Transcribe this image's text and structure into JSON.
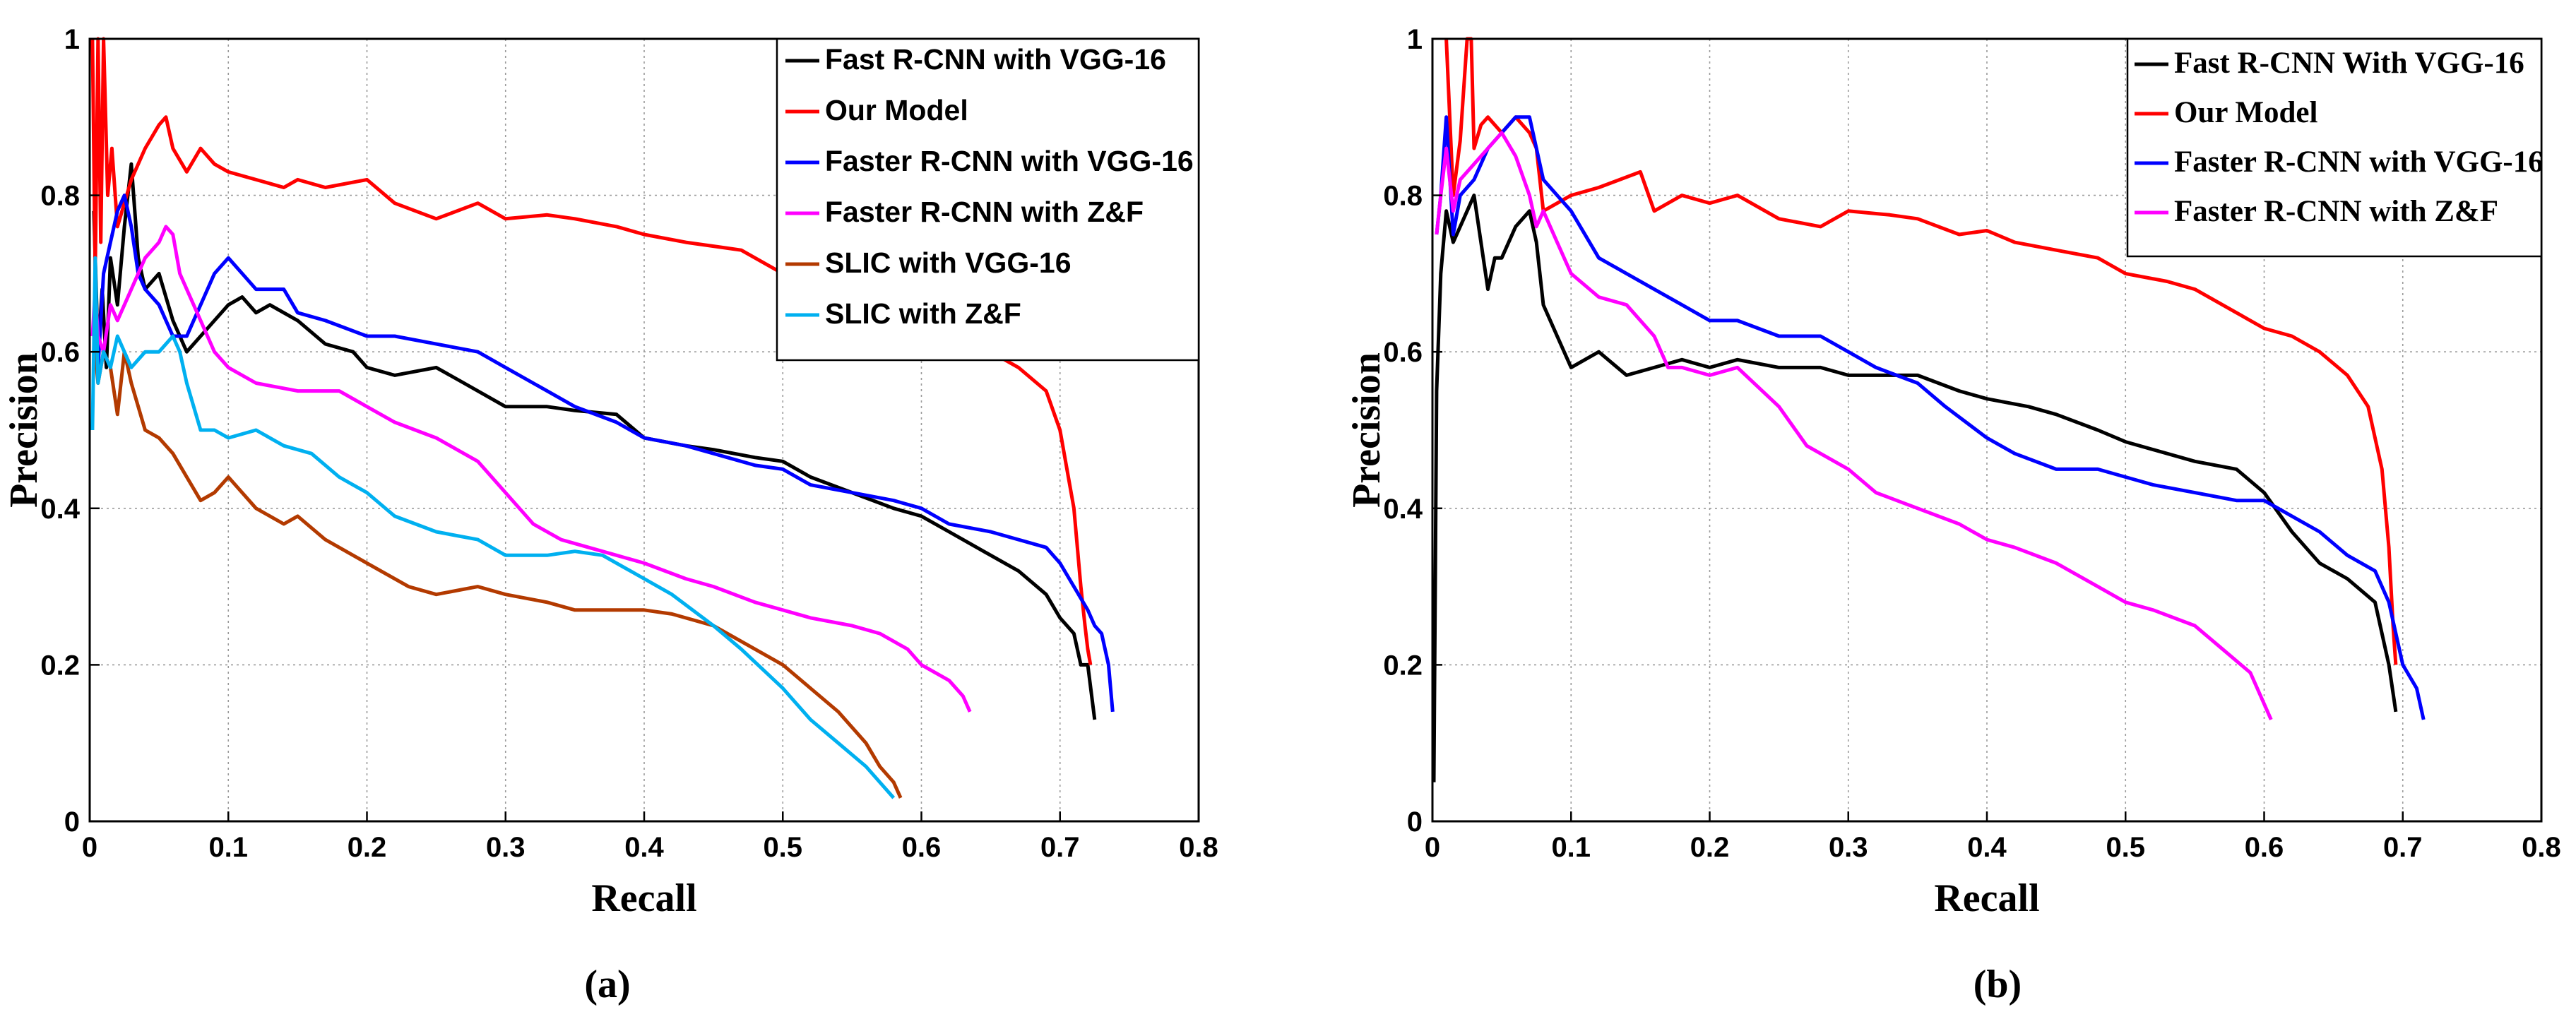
{
  "chart_data": [
    {
      "type": "line",
      "panel_label": "(a)",
      "xlabel": "Recall",
      "ylabel": "Precision",
      "xlim": [
        0,
        0.8
      ],
      "ylim": [
        0,
        1
      ],
      "xticks": [
        "0",
        "0.1",
        "0.2",
        "0.3",
        "0.4",
        "0.5",
        "0.6",
        "0.7",
        "0.8"
      ],
      "yticks": [
        "0",
        "0.2",
        "0.4",
        "0.6",
        "0.8",
        "1"
      ],
      "grid": true,
      "legend_position": "top-right",
      "series": [
        {
          "name": "Fast R-CNN with VGG-16",
          "color": "#000000",
          "x": [
            0.003,
            0.006,
            0.009,
            0.012,
            0.015,
            0.02,
            0.025,
            0.03,
            0.035,
            0.04,
            0.05,
            0.06,
            0.07,
            0.08,
            0.09,
            0.1,
            0.11,
            0.12,
            0.13,
            0.15,
            0.17,
            0.19,
            0.2,
            0.22,
            0.25,
            0.27,
            0.3,
            0.33,
            0.35,
            0.38,
            0.4,
            0.43,
            0.45,
            0.48,
            0.5,
            0.52,
            0.55,
            0.58,
            0.6,
            0.62,
            0.65,
            0.67,
            0.69,
            0.7,
            0.71,
            0.715,
            0.72,
            0.725
          ],
          "y": [
            0.78,
            0.6,
            0.68,
            0.58,
            0.72,
            0.66,
            0.76,
            0.84,
            0.72,
            0.68,
            0.7,
            0.64,
            0.6,
            0.62,
            0.64,
            0.66,
            0.67,
            0.65,
            0.66,
            0.64,
            0.61,
            0.6,
            0.58,
            0.57,
            0.58,
            0.56,
            0.53,
            0.53,
            0.525,
            0.52,
            0.49,
            0.48,
            0.475,
            0.465,
            0.46,
            0.44,
            0.42,
            0.4,
            0.39,
            0.37,
            0.34,
            0.32,
            0.29,
            0.26,
            0.24,
            0.2,
            0.2,
            0.13
          ]
        },
        {
          "name": "Our Model",
          "color": "#ff0000",
          "x": [
            0.002,
            0.004,
            0.006,
            0.008,
            0.01,
            0.013,
            0.016,
            0.02,
            0.03,
            0.04,
            0.05,
            0.055,
            0.06,
            0.07,
            0.08,
            0.09,
            0.1,
            0.12,
            0.14,
            0.15,
            0.17,
            0.2,
            0.22,
            0.25,
            0.28,
            0.3,
            0.33,
            0.35,
            0.38,
            0.4,
            0.43,
            0.45,
            0.47,
            0.5,
            0.53,
            0.55,
            0.58,
            0.6,
            0.62,
            0.65,
            0.67,
            0.69,
            0.7,
            0.71,
            0.715,
            0.718,
            0.72,
            0.722
          ],
          "y": [
            1,
            0.7,
            1,
            0.74,
            1,
            0.8,
            0.86,
            0.76,
            0.82,
            0.86,
            0.89,
            0.9,
            0.86,
            0.83,
            0.86,
            0.84,
            0.83,
            0.82,
            0.81,
            0.82,
            0.81,
            0.82,
            0.79,
            0.77,
            0.79,
            0.77,
            0.775,
            0.77,
            0.76,
            0.75,
            0.74,
            0.735,
            0.73,
            0.7,
            0.69,
            0.68,
            0.66,
            0.64,
            0.62,
            0.6,
            0.58,
            0.55,
            0.5,
            0.4,
            0.3,
            0.25,
            0.22,
            0.2
          ]
        },
        {
          "name": "Faster R-CNN with VGG-16",
          "color": "#0000ff",
          "x": [
            0.003,
            0.006,
            0.01,
            0.015,
            0.02,
            0.025,
            0.03,
            0.035,
            0.04,
            0.05,
            0.06,
            0.07,
            0.08,
            0.09,
            0.1,
            0.11,
            0.12,
            0.14,
            0.15,
            0.17,
            0.2,
            0.22,
            0.25,
            0.28,
            0.3,
            0.33,
            0.35,
            0.38,
            0.4,
            0.43,
            0.45,
            0.48,
            0.5,
            0.52,
            0.55,
            0.58,
            0.6,
            0.62,
            0.65,
            0.67,
            0.69,
            0.7,
            0.71,
            0.72,
            0.725,
            0.73,
            0.735,
            0.738
          ],
          "y": [
            0.6,
            0.58,
            0.7,
            0.74,
            0.78,
            0.8,
            0.76,
            0.7,
            0.68,
            0.66,
            0.62,
            0.62,
            0.66,
            0.7,
            0.72,
            0.7,
            0.68,
            0.68,
            0.65,
            0.64,
            0.62,
            0.62,
            0.61,
            0.6,
            0.58,
            0.55,
            0.53,
            0.51,
            0.49,
            0.48,
            0.47,
            0.455,
            0.45,
            0.43,
            0.42,
            0.41,
            0.4,
            0.38,
            0.37,
            0.36,
            0.35,
            0.33,
            0.3,
            0.27,
            0.25,
            0.24,
            0.2,
            0.14
          ]
        },
        {
          "name": "Faster R-CNN with Z&F",
          "color": "#ff00ff",
          "x": [
            0.002,
            0.004,
            0.006,
            0.01,
            0.015,
            0.02,
            0.03,
            0.04,
            0.05,
            0.055,
            0.06,
            0.065,
            0.07,
            0.08,
            0.09,
            0.1,
            0.12,
            0.15,
            0.18,
            0.2,
            0.22,
            0.25,
            0.28,
            0.3,
            0.32,
            0.34,
            0.36,
            0.38,
            0.4,
            0.43,
            0.45,
            0.48,
            0.5,
            0.52,
            0.55,
            0.57,
            0.59,
            0.6,
            0.62,
            0.63,
            0.635
          ],
          "y": [
            0.62,
            0.68,
            0.62,
            0.6,
            0.66,
            0.64,
            0.68,
            0.72,
            0.74,
            0.76,
            0.75,
            0.7,
            0.68,
            0.64,
            0.6,
            0.58,
            0.56,
            0.55,
            0.55,
            0.53,
            0.51,
            0.49,
            0.46,
            0.42,
            0.38,
            0.36,
            0.35,
            0.34,
            0.33,
            0.31,
            0.3,
            0.28,
            0.27,
            0.26,
            0.25,
            0.24,
            0.22,
            0.2,
            0.18,
            0.16,
            0.14
          ]
        },
        {
          "name": "SLIC with VGG-16",
          "color": "#b33a00",
          "x": [
            0.003,
            0.006,
            0.01,
            0.015,
            0.02,
            0.025,
            0.03,
            0.04,
            0.05,
            0.06,
            0.07,
            0.08,
            0.09,
            0.1,
            0.12,
            0.14,
            0.15,
            0.17,
            0.2,
            0.23,
            0.25,
            0.28,
            0.3,
            0.33,
            0.35,
            0.38,
            0.4,
            0.42,
            0.45,
            0.47,
            0.5,
            0.52,
            0.54,
            0.56,
            0.57,
            0.58,
            0.585
          ],
          "y": [
            0.62,
            0.56,
            0.6,
            0.58,
            0.52,
            0.6,
            0.56,
            0.5,
            0.49,
            0.47,
            0.44,
            0.41,
            0.42,
            0.44,
            0.4,
            0.38,
            0.39,
            0.36,
            0.33,
            0.3,
            0.29,
            0.3,
            0.29,
            0.28,
            0.27,
            0.27,
            0.27,
            0.265,
            0.25,
            0.23,
            0.2,
            0.17,
            0.14,
            0.1,
            0.07,
            0.05,
            0.03
          ]
        },
        {
          "name": "SLIC with Z&F",
          "color": "#00b0f0",
          "x": [
            0.002,
            0.004,
            0.006,
            0.01,
            0.015,
            0.02,
            0.03,
            0.04,
            0.05,
            0.06,
            0.065,
            0.07,
            0.08,
            0.09,
            0.1,
            0.12,
            0.14,
            0.16,
            0.18,
            0.2,
            0.22,
            0.25,
            0.28,
            0.3,
            0.33,
            0.35,
            0.37,
            0.4,
            0.42,
            0.45,
            0.47,
            0.5,
            0.52,
            0.54,
            0.56,
            0.57,
            0.58
          ],
          "y": [
            0.5,
            0.72,
            0.56,
            0.6,
            0.58,
            0.62,
            0.58,
            0.6,
            0.6,
            0.62,
            0.6,
            0.56,
            0.5,
            0.5,
            0.49,
            0.5,
            0.48,
            0.47,
            0.44,
            0.42,
            0.39,
            0.37,
            0.36,
            0.34,
            0.34,
            0.345,
            0.34,
            0.31,
            0.29,
            0.25,
            0.22,
            0.17,
            0.13,
            0.1,
            0.07,
            0.05,
            0.03
          ]
        }
      ]
    },
    {
      "type": "line",
      "panel_label": "(b)",
      "xlabel": "Recall",
      "ylabel": "Precision",
      "xlim": [
        0,
        0.8
      ],
      "ylim": [
        0,
        1
      ],
      "xticks": [
        "0",
        "0.1",
        "0.2",
        "0.3",
        "0.4",
        "0.5",
        "0.6",
        "0.7",
        "0.8"
      ],
      "yticks": [
        "0",
        "0.2",
        "0.4",
        "0.6",
        "0.8",
        "1"
      ],
      "grid": true,
      "legend_position": "top-right",
      "series": [
        {
          "name": "Fast R-CNN With VGG-16",
          "color": "#000000",
          "x": [
            0.001,
            0.003,
            0.006,
            0.01,
            0.015,
            0.02,
            0.025,
            0.03,
            0.035,
            0.04,
            0.045,
            0.05,
            0.06,
            0.07,
            0.075,
            0.08,
            0.09,
            0.1,
            0.12,
            0.14,
            0.16,
            0.18,
            0.2,
            0.22,
            0.25,
            0.28,
            0.3,
            0.33,
            0.35,
            0.38,
            0.4,
            0.43,
            0.45,
            0.48,
            0.5,
            0.52,
            0.55,
            0.58,
            0.6,
            0.62,
            0.64,
            0.66,
            0.68,
            0.69,
            0.695
          ],
          "y": [
            0.05,
            0.55,
            0.7,
            0.78,
            0.74,
            0.76,
            0.78,
            0.8,
            0.74,
            0.68,
            0.72,
            0.72,
            0.76,
            0.78,
            0.74,
            0.66,
            0.62,
            0.58,
            0.6,
            0.57,
            0.58,
            0.59,
            0.58,
            0.59,
            0.58,
            0.58,
            0.57,
            0.57,
            0.57,
            0.55,
            0.54,
            0.53,
            0.52,
            0.5,
            0.485,
            0.475,
            0.46,
            0.45,
            0.42,
            0.37,
            0.33,
            0.31,
            0.28,
            0.2,
            0.14
          ]
        },
        {
          "name": "Our Model",
          "color": "#ff0000",
          "x": [
            0.01,
            0.015,
            0.02,
            0.025,
            0.028,
            0.03,
            0.035,
            0.04,
            0.05,
            0.06,
            0.07,
            0.075,
            0.08,
            0.1,
            0.12,
            0.15,
            0.16,
            0.18,
            0.2,
            0.22,
            0.25,
            0.28,
            0.3,
            0.33,
            0.35,
            0.38,
            0.4,
            0.42,
            0.45,
            0.48,
            0.5,
            0.53,
            0.55,
            0.58,
            0.6,
            0.62,
            0.64,
            0.66,
            0.675,
            0.685,
            0.69,
            0.693,
            0.695
          ],
          "y": [
            1,
            0.8,
            0.87,
            1,
            1,
            0.86,
            0.89,
            0.9,
            0.88,
            0.9,
            0.88,
            0.86,
            0.78,
            0.8,
            0.81,
            0.83,
            0.78,
            0.8,
            0.79,
            0.8,
            0.77,
            0.76,
            0.78,
            0.775,
            0.77,
            0.75,
            0.755,
            0.74,
            0.73,
            0.72,
            0.7,
            0.69,
            0.68,
            0.65,
            0.63,
            0.62,
            0.6,
            0.57,
            0.53,
            0.45,
            0.35,
            0.25,
            0.2
          ]
        },
        {
          "name": "Faster R-CNN with VGG-16",
          "color": "#0000ff",
          "x": [
            0.003,
            0.006,
            0.01,
            0.015,
            0.02,
            0.03,
            0.04,
            0.05,
            0.06,
            0.07,
            0.075,
            0.08,
            0.09,
            0.1,
            0.12,
            0.14,
            0.16,
            0.18,
            0.2,
            0.22,
            0.25,
            0.28,
            0.3,
            0.32,
            0.35,
            0.37,
            0.4,
            0.42,
            0.45,
            0.48,
            0.5,
            0.52,
            0.55,
            0.58,
            0.6,
            0.62,
            0.64,
            0.66,
            0.68,
            0.69,
            0.7,
            0.71,
            0.715
          ],
          "y": [
            0.75,
            0.8,
            0.9,
            0.75,
            0.8,
            0.82,
            0.86,
            0.88,
            0.9,
            0.9,
            0.86,
            0.82,
            0.8,
            0.78,
            0.72,
            0.7,
            0.68,
            0.66,
            0.64,
            0.64,
            0.62,
            0.62,
            0.6,
            0.58,
            0.56,
            0.53,
            0.49,
            0.47,
            0.45,
            0.45,
            0.44,
            0.43,
            0.42,
            0.41,
            0.41,
            0.39,
            0.37,
            0.34,
            0.32,
            0.28,
            0.2,
            0.17,
            0.13
          ]
        },
        {
          "name": "Faster R-CNN with Z&F",
          "color": "#ff00ff",
          "x": [
            0.003,
            0.006,
            0.01,
            0.015,
            0.02,
            0.03,
            0.04,
            0.05,
            0.06,
            0.07,
            0.075,
            0.08,
            0.09,
            0.1,
            0.12,
            0.14,
            0.16,
            0.165,
            0.17,
            0.18,
            0.2,
            0.22,
            0.25,
            0.27,
            0.3,
            0.32,
            0.35,
            0.38,
            0.4,
            0.42,
            0.45,
            0.48,
            0.5,
            0.52,
            0.55,
            0.57,
            0.59,
            0.6,
            0.605
          ],
          "y": [
            0.75,
            0.8,
            0.86,
            0.78,
            0.82,
            0.84,
            0.86,
            0.88,
            0.85,
            0.8,
            0.76,
            0.78,
            0.74,
            0.7,
            0.67,
            0.66,
            0.62,
            0.6,
            0.58,
            0.58,
            0.57,
            0.58,
            0.53,
            0.48,
            0.45,
            0.42,
            0.4,
            0.38,
            0.36,
            0.35,
            0.33,
            0.3,
            0.28,
            0.27,
            0.25,
            0.22,
            0.19,
            0.15,
            0.13
          ]
        }
      ]
    }
  ]
}
